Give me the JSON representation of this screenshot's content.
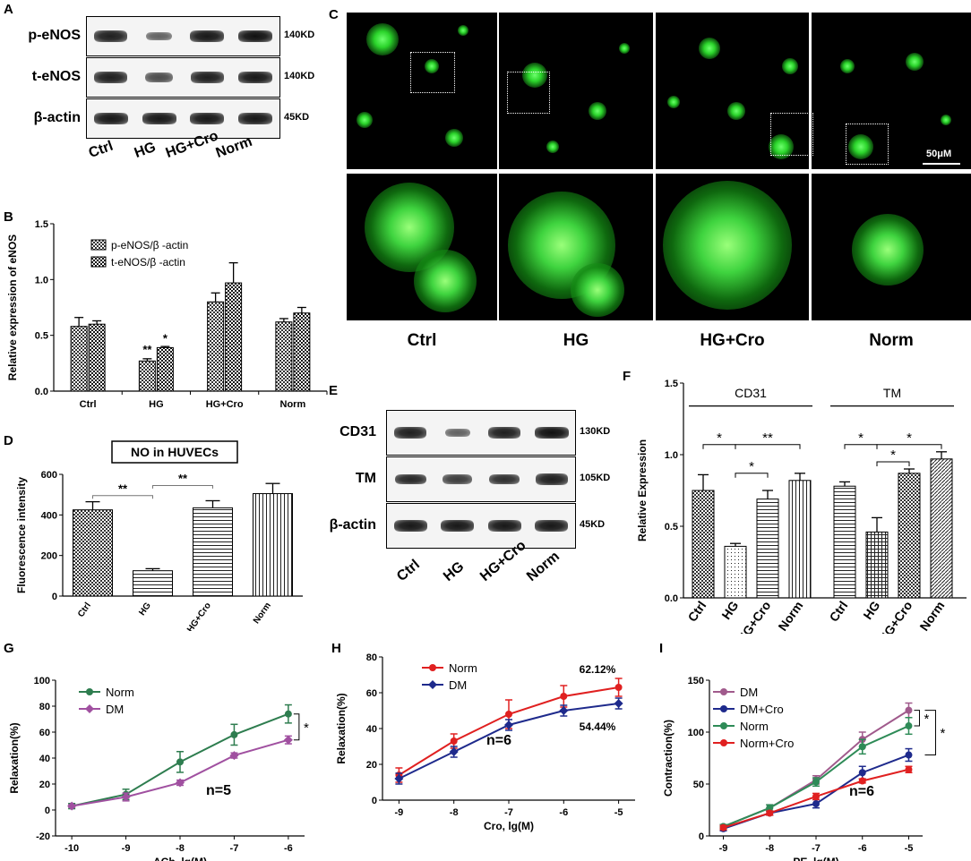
{
  "panels": {
    "A": {
      "letter": "A",
      "rows": [
        {
          "label": "p-eNOS",
          "kd": "140KD",
          "intensity": [
            0.9,
            0.45,
            0.95,
            1.0
          ]
        },
        {
          "label": "t-eNOS",
          "kd": "140KD",
          "intensity": [
            0.9,
            0.6,
            0.9,
            0.95
          ]
        },
        {
          "label": "β-actin",
          "kd": "45KD",
          "intensity": [
            0.95,
            0.95,
            0.95,
            0.95
          ]
        }
      ],
      "lanes": [
        "Ctrl",
        "HG",
        "HG+Cro",
        "Norm"
      ]
    },
    "B": {
      "letter": "B",
      "chart_data": {
        "type": "bar",
        "categories": [
          "Ctrl",
          "HG",
          "HG+Cro",
          "Norm"
        ],
        "series": [
          {
            "name": "p-eNOS/β -actin",
            "values": [
              0.58,
              0.27,
              0.8,
              0.62
            ],
            "errors": [
              0.08,
              0.02,
              0.08,
              0.03
            ]
          },
          {
            "name": "t-eNOS/β -actin",
            "values": [
              0.6,
              0.39,
              0.97,
              0.7
            ],
            "errors": [
              0.03,
              0.01,
              0.18,
              0.05
            ]
          }
        ],
        "ylabel": "Relative expression of eNOS",
        "ylim": [
          0,
          1.5
        ],
        "yticks": [
          "0.0",
          "0.5",
          "1.0",
          "1.5"
        ],
        "annotations": [
          "**",
          "*"
        ]
      }
    },
    "C": {
      "letter": "C",
      "labels": [
        "Ctrl",
        "HG",
        "HG+Cro",
        "Norm"
      ],
      "scale_bar": "50μM"
    },
    "D": {
      "letter": "D",
      "chart_data": {
        "type": "bar",
        "title": "NO in HUVECs",
        "categories": [
          "Ctrl",
          "HG",
          "HG+Cro",
          "Norm"
        ],
        "values": [
          425,
          125,
          435,
          505
        ],
        "errors": [
          40,
          10,
          35,
          50
        ],
        "ylabel": "Fluorescence intensity",
        "ylim": [
          0,
          600
        ],
        "yticks": [
          "0",
          "200",
          "400",
          "600"
        ],
        "annotations": [
          "**",
          "**"
        ]
      }
    },
    "E": {
      "letter": "E",
      "rows": [
        {
          "label": "CD31",
          "kd": "130KD",
          "intensity": [
            0.9,
            0.45,
            0.9,
            1.0
          ]
        },
        {
          "label": "TM",
          "kd": "105KD",
          "intensity": [
            0.85,
            0.7,
            0.8,
            0.9
          ]
        },
        {
          "label": "β-actin",
          "kd": "45KD",
          "intensity": [
            0.95,
            0.95,
            0.95,
            0.95
          ]
        }
      ],
      "lanes": [
        "Ctrl",
        "HG",
        "HG+Cro",
        "Norm"
      ]
    },
    "F": {
      "letter": "F",
      "chart_data": {
        "type": "bar",
        "groups": [
          {
            "name": "CD31",
            "categories": [
              "Ctrl",
              "HG",
              "HG+Cro",
              "Norm"
            ],
            "values": [
              0.75,
              0.36,
              0.69,
              0.82
            ],
            "errors": [
              0.11,
              0.02,
              0.06,
              0.05
            ]
          },
          {
            "name": "TM",
            "categories": [
              "Ctrl",
              "HG",
              "HG+Cro",
              "Norm"
            ],
            "values": [
              0.78,
              0.46,
              0.87,
              0.97
            ],
            "errors": [
              0.03,
              0.1,
              0.03,
              0.05
            ]
          }
        ],
        "ylabel": "Relative Expression",
        "ylim": [
          0,
          1.5
        ],
        "yticks": [
          "0.0",
          "0.5",
          "1.0",
          "1.5"
        ],
        "annotations": [
          "*",
          "**",
          "*",
          "*",
          "*",
          "*"
        ]
      }
    },
    "G": {
      "letter": "G",
      "chart_data": {
        "type": "line",
        "x": [
          -10,
          -9,
          -8,
          -7,
          -6
        ],
        "xticks": [
          "-10",
          "-9",
          "-8",
          "-7",
          "-6"
        ],
        "series": [
          {
            "name": "Norm",
            "color": "#2e7d4f",
            "values": [
              3,
              12,
              37,
              58,
              74
            ],
            "errors": [
              2,
              4,
              8,
              8,
              7
            ]
          },
          {
            "name": "DM",
            "color": "#a050a0",
            "values": [
              3,
              10,
              21,
              42,
              54
            ],
            "errors": [
              1,
              3,
              2,
              2,
              3
            ]
          }
        ],
        "xlabel": "ACh, lg(M)",
        "ylabel": "Relaxation(%)",
        "ylim": [
          -20,
          100
        ],
        "yticks": [
          "-20",
          "0",
          "20",
          "40",
          "60",
          "80",
          "100"
        ],
        "n_label": "n=5",
        "annotations": [
          "*"
        ]
      }
    },
    "H": {
      "letter": "H",
      "chart_data": {
        "type": "line",
        "x": [
          -9,
          -8,
          -7,
          -6,
          -5
        ],
        "xticks": [
          "-9",
          "-8",
          "-7",
          "-6",
          "-5"
        ],
        "series": [
          {
            "name": "Norm",
            "color": "#e02020",
            "values": [
              14,
              33,
              48,
              58,
              63
            ],
            "errors": [
              4,
              4,
              8,
              6,
              5
            ]
          },
          {
            "name": "DM",
            "color": "#1e2a8c",
            "values": [
              12,
              27,
              42,
              50,
              54
            ],
            "errors": [
              3,
              3,
              3,
              3,
              3
            ]
          }
        ],
        "xlabel": "Cro, lg(M)",
        "ylabel": "Relaxation(%)",
        "ylim": [
          0,
          80
        ],
        "yticks": [
          "0",
          "20",
          "40",
          "60",
          "80"
        ],
        "n_label": "n=6",
        "annotations": [
          "62.12%",
          "54.44%"
        ]
      }
    },
    "I": {
      "letter": "I",
      "chart_data": {
        "type": "line",
        "x": [
          -9,
          -8,
          -7,
          -6,
          -5
        ],
        "xticks": [
          "-9",
          "-8",
          "-7",
          "-6",
          "-5"
        ],
        "series": [
          {
            "name": "DM",
            "color": "#a05a8c",
            "values": [
              9,
              27,
              54,
              93,
              121
            ],
            "errors": [
              2,
              3,
              4,
              7,
              7
            ]
          },
          {
            "name": "DM+Cro",
            "color": "#1e2a8c",
            "values": [
              7,
              22,
              31,
              61,
              78
            ],
            "errors": [
              2,
              2,
              4,
              6,
              6
            ]
          },
          {
            "name": "Norm",
            "color": "#2e8b57",
            "values": [
              9,
              27,
              52,
              86,
              106
            ],
            "errors": [
              2,
              3,
              4,
              7,
              8
            ]
          },
          {
            "name": "Norm+Cro",
            "color": "#e02020",
            "values": [
              8,
              22,
              38,
              53,
              64
            ],
            "errors": [
              2,
              2,
              3,
              2,
              3
            ]
          }
        ],
        "xlabel": "PE, lg(M)",
        "ylabel": "Contraction(%)",
        "ylim": [
          0,
          150
        ],
        "yticks": [
          "0",
          "50",
          "100",
          "150"
        ],
        "n_label": "n=6",
        "annotations": [
          "*",
          "*"
        ]
      }
    }
  }
}
